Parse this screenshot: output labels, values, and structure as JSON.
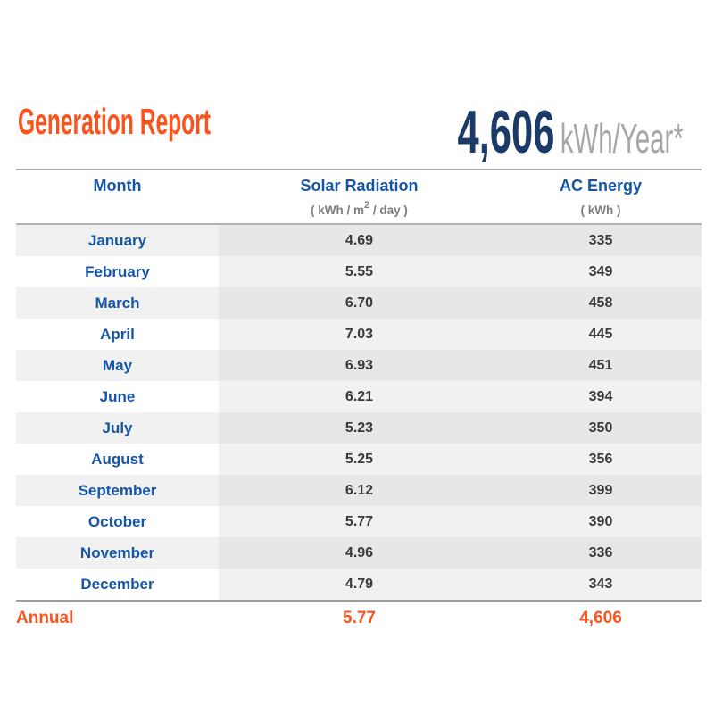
{
  "report": {
    "title": "Generation Report",
    "annual_total": {
      "value": "4,606",
      "unit": "kWh/Year*"
    }
  },
  "table": {
    "headers": {
      "month": "Month",
      "solar": "Solar Radiation",
      "ac": "AC Energy"
    },
    "units": {
      "solar_pre": "( kWh / m",
      "solar_sup": "2",
      "solar_post": " / day )",
      "ac": "( kWh )"
    },
    "rows": [
      {
        "month": "January",
        "solar": "4.69",
        "ac": "335"
      },
      {
        "month": "February",
        "solar": "5.55",
        "ac": "349"
      },
      {
        "month": "March",
        "solar": "6.70",
        "ac": "458"
      },
      {
        "month": "April",
        "solar": "7.03",
        "ac": "445"
      },
      {
        "month": "May",
        "solar": "6.93",
        "ac": "451"
      },
      {
        "month": "June",
        "solar": "6.21",
        "ac": "394"
      },
      {
        "month": "July",
        "solar": "5.23",
        "ac": "350"
      },
      {
        "month": "August",
        "solar": "5.25",
        "ac": "356"
      },
      {
        "month": "September",
        "solar": "6.12",
        "ac": "399"
      },
      {
        "month": "October",
        "solar": "5.77",
        "ac": "390"
      },
      {
        "month": "November",
        "solar": "4.96",
        "ac": "336"
      },
      {
        "month": "December",
        "solar": "4.79",
        "ac": "343"
      }
    ],
    "annual": {
      "label": "Annual",
      "solar": "5.77",
      "ac": "4,606"
    }
  },
  "colors": {
    "accent_orange": "#F7541E",
    "stat_navy": "#1B3A68",
    "header_blue": "#1556A6",
    "value_text": "#3A3A3A",
    "unit_gray": "#7D7D7D",
    "stat_unit_gray": "#A7A7A7",
    "row_month_odd": "#F1F1F1",
    "row_data_odd": "#E7E7E7",
    "row_month_even": "#FFFFFF",
    "row_data_even": "#F1F1F1",
    "rule_gray": "#A8A8A8"
  },
  "chart_data": {
    "type": "table",
    "title": "Generation Report",
    "columns": [
      "Month",
      "Solar Radiation ( kWh / m2 / day )",
      "AC Energy ( kWh )"
    ],
    "months": [
      "January",
      "February",
      "March",
      "April",
      "May",
      "June",
      "July",
      "August",
      "September",
      "October",
      "November",
      "December"
    ],
    "solar_radiation": [
      4.69,
      5.55,
      6.7,
      7.03,
      6.93,
      6.21,
      5.23,
      5.25,
      6.12,
      5.77,
      4.96,
      4.79
    ],
    "ac_energy": [
      335,
      349,
      458,
      445,
      451,
      394,
      350,
      356,
      399,
      390,
      336,
      343
    ],
    "annual": {
      "solar_radiation": 5.77,
      "ac_energy": 4606
    },
    "annual_total_label": "4,606 kWh/Year*"
  }
}
